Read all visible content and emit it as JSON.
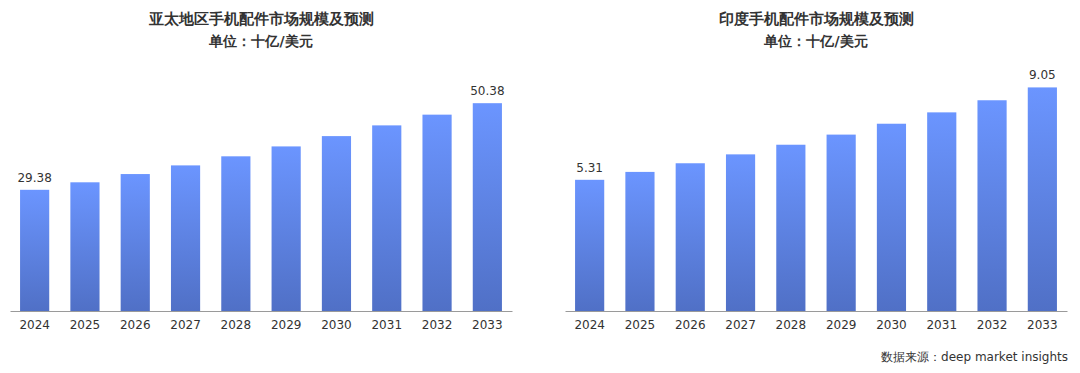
{
  "chart_data": [
    {
      "type": "bar",
      "title": "亚太地区手机配件市场规模及预测",
      "subtitle": "单位：十亿/美元",
      "categories": [
        "2024",
        "2025",
        "2026",
        "2027",
        "2028",
        "2029",
        "2030",
        "2031",
        "2032",
        "2033"
      ],
      "values": [
        29.38,
        31.2,
        33.2,
        35.3,
        37.5,
        39.9,
        42.4,
        45.0,
        47.6,
        50.38
      ],
      "value_labels": [
        "29.38",
        null,
        null,
        null,
        null,
        null,
        null,
        null,
        null,
        "50.38"
      ],
      "color": "#5b7fe0",
      "ylim": [
        0,
        56
      ],
      "data_labels": true,
      "tick_labels": "x",
      "grid": false
    },
    {
      "type": "bar",
      "title": "印度手机配件市场规模及预测",
      "subtitle": "单位：十亿/美元",
      "categories": [
        "2024",
        "2025",
        "2026",
        "2027",
        "2028",
        "2029",
        "2030",
        "2031",
        "2032",
        "2033"
      ],
      "values": [
        5.31,
        5.63,
        5.98,
        6.34,
        6.73,
        7.14,
        7.58,
        8.04,
        8.53,
        9.05
      ],
      "value_labels": [
        "5.31",
        null,
        null,
        null,
        null,
        null,
        null,
        null,
        null,
        "9.05"
      ],
      "color": "#5b7fe0",
      "ylim": [
        0,
        9.35
      ],
      "data_labels": true,
      "tick_labels": "x",
      "grid": false
    }
  ],
  "source": "数据来源：deep market insights"
}
